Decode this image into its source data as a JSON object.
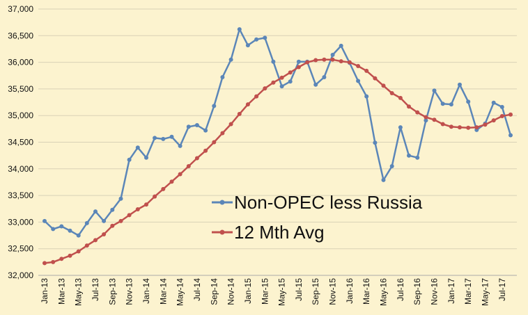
{
  "chart_data": {
    "type": "line",
    "x": [
      "Jan-13",
      "Feb-13",
      "Mar-13",
      "Apr-13",
      "May-13",
      "Jun-13",
      "Jul-13",
      "Aug-13",
      "Sep-13",
      "Oct-13",
      "Nov-13",
      "Dec-13",
      "Jan-14",
      "Feb-14",
      "Mar-14",
      "Apr-14",
      "May-14",
      "Jun-14",
      "Jul-14",
      "Aug-14",
      "Sep-14",
      "Oct-14",
      "Nov-14",
      "Dec-14",
      "Jan-15",
      "Feb-15",
      "Mar-15",
      "Apr-15",
      "May-15",
      "Jun-15",
      "Jul-15",
      "Aug-15",
      "Sep-15",
      "Oct-15",
      "Nov-15",
      "Dec-15",
      "Jan-16",
      "Feb-16",
      "Mar-16",
      "Apr-16",
      "May-16",
      "Jun-16",
      "Jul-16",
      "Aug-16",
      "Sep-16",
      "Oct-16",
      "Nov-16",
      "Dec-16",
      "Jan-17",
      "Feb-17",
      "Mar-17",
      "Apr-17",
      "May-17",
      "Jun-17",
      "Jul-17",
      "Aug-17"
    ],
    "x_tick_labels": [
      "Jan-13",
      "Mar-13",
      "May-13",
      "Jul-13",
      "Sep-13",
      "Nov-13",
      "Jan-14",
      "Mar-14",
      "May-14",
      "Jul-14",
      "Sep-14",
      "Nov-14",
      "Jan-15",
      "Mar-15",
      "May-15",
      "Jul-15",
      "Sep-15",
      "Nov-15",
      "Jan-16",
      "Mar-16",
      "May-16",
      "Jul-16",
      "Sep-16",
      "Nov-16",
      "Jan-17",
      "Mar-17",
      "May-17",
      "Jul-17"
    ],
    "y_tick_labels": [
      "32,000",
      "32,500",
      "33,000",
      "33,500",
      "34,000",
      "34,500",
      "35,000",
      "35,500",
      "36,000",
      "36,500",
      "37,000"
    ],
    "ylim": [
      32000,
      37000
    ],
    "series": [
      {
        "name": "Non-OPEC less Russia",
        "color": "#5B86B8",
        "values": [
          33020,
          32870,
          32920,
          32840,
          32750,
          32980,
          33200,
          33020,
          33230,
          33440,
          34170,
          34400,
          34210,
          34580,
          34560,
          34600,
          34430,
          34790,
          34820,
          34720,
          35180,
          35720,
          36050,
          36620,
          36320,
          36430,
          36460,
          36010,
          35550,
          35640,
          36010,
          36010,
          35580,
          35720,
          36140,
          36310,
          35990,
          35650,
          35360,
          34490,
          33790,
          34050,
          34780,
          34250,
          34210,
          34910,
          35470,
          35220,
          35210,
          35580,
          35260,
          34730,
          34850,
          35240,
          35160,
          34630
        ]
      },
      {
        "name": "12 Mth Avg",
        "color": "#C0504D",
        "values": [
          32230,
          32250,
          32310,
          32370,
          32450,
          32560,
          32660,
          32770,
          32930,
          33020,
          33130,
          33240,
          33330,
          33480,
          33620,
          33760,
          33900,
          34050,
          34200,
          34340,
          34500,
          34670,
          34840,
          35030,
          35210,
          35360,
          35510,
          35620,
          35710,
          35810,
          35910,
          36000,
          36040,
          36050,
          36050,
          36020,
          36000,
          35930,
          35840,
          35700,
          35560,
          35420,
          35330,
          35170,
          35060,
          34970,
          34920,
          34840,
          34790,
          34780,
          34770,
          34780,
          34830,
          34910,
          34990,
          35020
        ]
      }
    ],
    "grid": "horizontal",
    "legend": "inside-right"
  },
  "legend": {
    "entries": [
      "Non-OPEC less Russia",
      "12 Mth Avg"
    ]
  }
}
